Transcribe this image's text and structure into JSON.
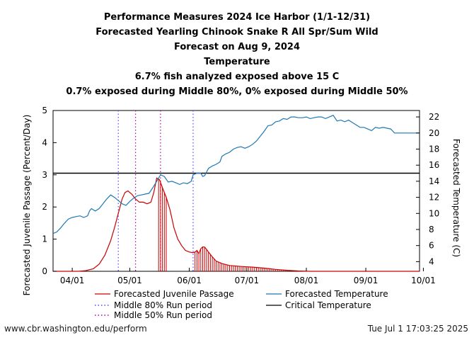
{
  "footer": {
    "source": "www.cbr.washington.edu/perform",
    "timestamp": "Tue Jul  1 17:03:25 2025"
  },
  "chart_data": {
    "type": "line",
    "title_lines": [
      "Performance Measures 2024 Ice Harbor (1/1-12/31)",
      "Forecasted Yearling Chinook Snake R All Spr/Sum Wild",
      "Forecast on Aug 9, 2024",
      "Temperature",
      "6.7% fish analyzed exposed above 15 C",
      "0.7% exposed during Middle 80%, 0% exposed during Middle 50%"
    ],
    "ylabel": "Forecasted Juvenile Passage (Percent/Day)",
    "y2label": "Forecasted Temperature (C)",
    "xlabel": "",
    "x_unit": "day of year 2024",
    "xlim": [
      82,
      273
    ],
    "ylim": [
      0,
      5
    ],
    "y2lim": [
      2.8,
      22.8
    ],
    "xticks": [
      {
        "x": 92,
        "label": "04/01"
      },
      {
        "x": 122,
        "label": "05/01"
      },
      {
        "x": 153,
        "label": "06/01"
      },
      {
        "x": 183,
        "label": "07/01"
      },
      {
        "x": 214,
        "label": "08/01"
      },
      {
        "x": 245,
        "label": "09/01"
      },
      {
        "x": 275,
        "label": "10/01"
      }
    ],
    "yticks": [
      0,
      1,
      2,
      3,
      4,
      5
    ],
    "y2ticks": [
      4,
      6,
      8,
      10,
      12,
      14,
      16,
      18,
      20,
      22
    ],
    "critical_temperature": 15,
    "middle_80_run_period": [
      116,
      155
    ],
    "middle_50_run_period": [
      125,
      138
    ],
    "legend_placement": "bottom",
    "legend": [
      {
        "label": "Forecasted Juvenile Passage",
        "color": "#cc0000",
        "style": "solid"
      },
      {
        "label": "Forecasted Temperature",
        "color": "#1f78b4",
        "style": "solid"
      },
      {
        "label": "Middle 80% Run period",
        "color": "#4b4bff",
        "style": "dotted"
      },
      {
        "label": "Critical Temperature",
        "color": "#000000",
        "style": "solid"
      },
      {
        "label": "Middle 50% Run period",
        "color": "#b000b0",
        "style": "dotted"
      }
    ],
    "passage_series": {
      "name": "Forecasted Juvenile Passage",
      "color": "#cc0000",
      "points": [
        [
          82,
          0
        ],
        [
          95,
          0
        ],
        [
          99,
          0.02
        ],
        [
          103,
          0.08
        ],
        [
          106,
          0.22
        ],
        [
          109,
          0.5
        ],
        [
          112,
          0.95
        ],
        [
          114,
          1.35
        ],
        [
          116,
          1.8
        ],
        [
          118,
          2.25
        ],
        [
          119.5,
          2.45
        ],
        [
          121,
          2.5
        ],
        [
          123,
          2.4
        ],
        [
          125,
          2.25
        ],
        [
          127,
          2.15
        ],
        [
          129,
          2.15
        ],
        [
          131,
          2.1
        ],
        [
          133,
          2.15
        ],
        [
          134.5,
          2.45
        ],
        [
          136,
          2.9
        ],
        [
          137.5,
          2.85
        ],
        [
          139,
          2.6
        ],
        [
          141,
          2.3
        ],
        [
          143,
          1.9
        ],
        [
          145,
          1.35
        ],
        [
          147,
          1.0
        ],
        [
          149,
          0.8
        ],
        [
          151,
          0.65
        ],
        [
          153,
          0.6
        ],
        [
          155,
          0.58
        ],
        [
          156,
          0.6
        ],
        [
          157,
          0.65
        ],
        [
          158,
          0.55
        ],
        [
          159,
          0.7
        ],
        [
          160,
          0.76
        ],
        [
          161,
          0.75
        ],
        [
          162,
          0.68
        ],
        [
          163,
          0.6
        ],
        [
          165,
          0.45
        ],
        [
          167,
          0.32
        ],
        [
          170,
          0.24
        ],
        [
          174,
          0.18
        ],
        [
          180,
          0.15
        ],
        [
          186,
          0.13
        ],
        [
          192,
          0.1
        ],
        [
          198,
          0.06
        ],
        [
          204,
          0.03
        ],
        [
          210,
          0.01
        ],
        [
          216,
          0
        ],
        [
          273,
          0
        ]
      ]
    },
    "temperature_series": {
      "name": "Forecasted Temperature",
      "color": "#1f78b4",
      "points": [
        [
          82,
          7.5
        ],
        [
          84,
          7.7
        ],
        [
          86,
          8.2
        ],
        [
          88,
          8.8
        ],
        [
          90,
          9.3
        ],
        [
          92,
          9.5
        ],
        [
          94,
          9.6
        ],
        [
          96,
          9.7
        ],
        [
          98,
          9.5
        ],
        [
          100,
          9.7
        ],
        [
          101,
          10.3
        ],
        [
          102,
          10.6
        ],
        [
          104,
          10.3
        ],
        [
          106,
          10.6
        ],
        [
          108,
          11.2
        ],
        [
          110,
          11.8
        ],
        [
          112,
          12.3
        ],
        [
          114,
          12.0
        ],
        [
          116,
          11.6
        ],
        [
          118,
          11.2
        ],
        [
          120,
          11.0
        ],
        [
          122,
          11.5
        ],
        [
          124,
          11.9
        ],
        [
          126,
          12.2
        ],
        [
          128,
          12.3
        ],
        [
          130,
          12.4
        ],
        [
          132,
          12.5
        ],
        [
          134,
          13.2
        ],
        [
          136,
          14.0
        ],
        [
          138,
          14.8
        ],
        [
          140,
          14.6
        ],
        [
          142,
          13.9
        ],
        [
          144,
          14.0
        ],
        [
          146,
          13.8
        ],
        [
          148,
          13.6
        ],
        [
          150,
          13.8
        ],
        [
          152,
          13.7
        ],
        [
          154,
          14.0
        ],
        [
          155,
          14.8
        ],
        [
          157,
          15.0
        ],
        [
          159,
          15.0
        ],
        [
          160,
          14.6
        ],
        [
          161,
          14.7
        ],
        [
          163,
          15.6
        ],
        [
          165,
          15.9
        ],
        [
          167,
          16.1
        ],
        [
          169,
          16.4
        ],
        [
          170,
          17.1
        ],
        [
          172,
          17.4
        ],
        [
          174,
          17.6
        ],
        [
          176,
          18.0
        ],
        [
          178,
          18.2
        ],
        [
          180,
          18.3
        ],
        [
          182,
          18.1
        ],
        [
          184,
          18.3
        ],
        [
          186,
          18.6
        ],
        [
          188,
          19.0
        ],
        [
          190,
          19.6
        ],
        [
          192,
          20.2
        ],
        [
          194,
          20.9
        ],
        [
          196,
          21.0
        ],
        [
          198,
          21.4
        ],
        [
          200,
          21.5
        ],
        [
          202,
          21.8
        ],
        [
          204,
          21.7
        ],
        [
          206,
          22.0
        ],
        [
          208,
          22.0
        ],
        [
          210,
          21.9
        ],
        [
          212,
          21.9
        ],
        [
          214,
          22.0
        ],
        [
          216,
          21.8
        ],
        [
          218,
          21.9
        ],
        [
          220,
          22.0
        ],
        [
          222,
          22.0
        ],
        [
          224,
          21.8
        ],
        [
          226,
          22.0
        ],
        [
          228,
          22.2
        ],
        [
          230,
          21.5
        ],
        [
          232,
          21.6
        ],
        [
          234,
          21.4
        ],
        [
          236,
          21.6
        ],
        [
          238,
          21.3
        ],
        [
          240,
          21.0
        ],
        [
          242,
          20.7
        ],
        [
          244,
          20.7
        ],
        [
          246,
          20.5
        ],
        [
          248,
          20.3
        ],
        [
          250,
          20.7
        ],
        [
          252,
          20.6
        ],
        [
          254,
          20.7
        ],
        [
          256,
          20.6
        ],
        [
          258,
          20.5
        ],
        [
          260,
          20.0
        ],
        [
          262,
          20.0
        ],
        [
          264,
          20.0
        ],
        [
          266,
          20.0
        ],
        [
          268,
          20.0
        ],
        [
          270,
          20.0
        ],
        [
          273,
          20.0
        ]
      ]
    },
    "exposed_above_critical_bars": {
      "color": "#cc0000",
      "start_days": [
        137,
        138,
        139,
        140,
        141,
        156,
        157,
        158,
        159,
        160,
        161,
        162,
        163,
        164,
        165,
        166,
        167,
        168,
        169,
        170,
        171,
        172,
        173,
        174,
        175,
        176,
        177,
        178,
        179,
        180,
        181,
        182,
        183,
        184,
        185,
        186,
        187,
        188,
        189,
        190,
        191,
        192,
        193,
        194,
        195,
        196,
        197,
        198,
        199,
        200,
        201,
        202,
        203,
        204,
        205,
        206,
        207,
        208,
        209,
        210
      ]
    }
  }
}
